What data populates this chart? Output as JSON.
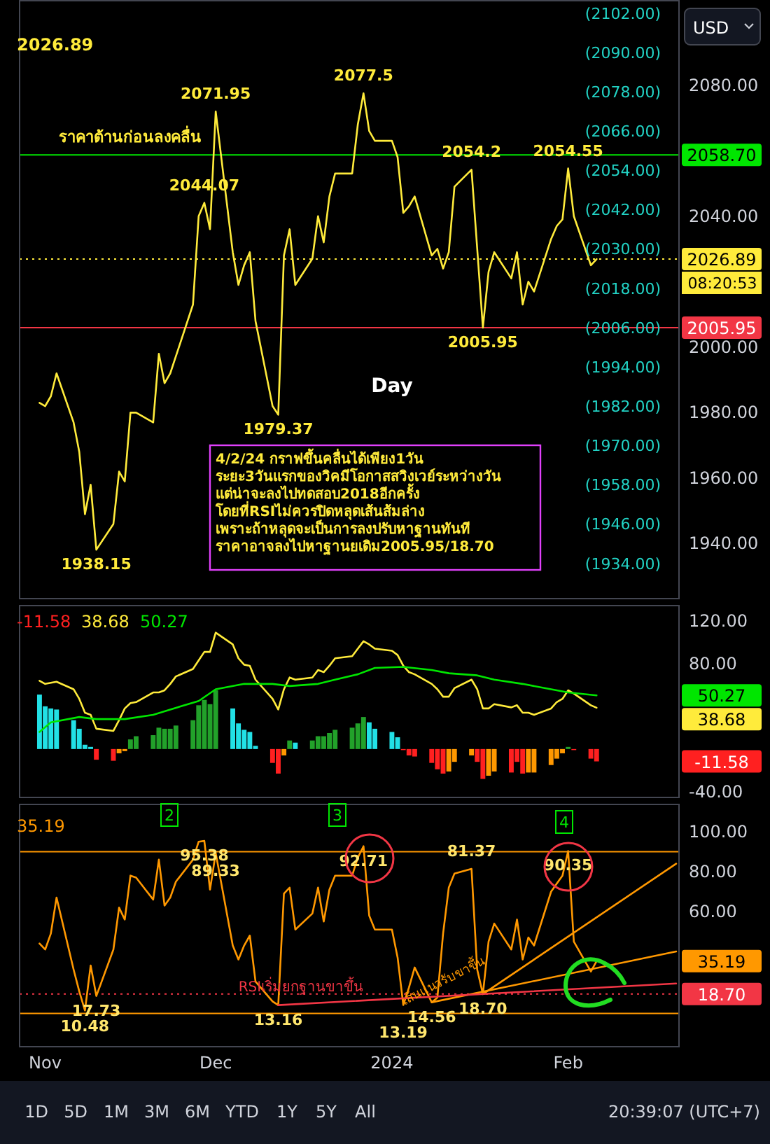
{
  "chart_data": [
    {
      "type": "line",
      "xlim": [
        "2023-10-27T12:00",
        "2024-02-20T12:00"
      ],
      "ylim": [
        1923,
        2106
      ],
      "y2lim": [
        1923,
        2106
      ],
      "tick_labels": "y",
      "grid": false,
      "yticks": [
        {
          "value": 1940,
          "label": "1940.00"
        },
        {
          "value": 1960,
          "label": "1960.00"
        },
        {
          "value": 1980,
          "label": "1980.00"
        },
        {
          "value": 2000,
          "label": "2000.00"
        },
        {
          "value": 2040,
          "label": "2040.00"
        },
        {
          "value": 2080,
          "label": "2080.00"
        }
      ],
      "y2ticks": [
        {
          "value": 2102,
          "label": "(2102.00)"
        },
        {
          "value": 2090,
          "label": "(2090.00)"
        },
        {
          "value": 2078,
          "label": "(2078.00)"
        },
        {
          "value": 2066,
          "label": "(2066.00)"
        },
        {
          "value": 2054,
          "label": "(2054.00)"
        },
        {
          "value": 2042,
          "label": "(2042.00)"
        },
        {
          "value": 2030,
          "label": "(2030.00)"
        },
        {
          "value": 2018,
          "label": "(2018.00)"
        },
        {
          "value": 2006,
          "label": "(2006.00)"
        },
        {
          "value": 1994,
          "label": "(1994.00)"
        },
        {
          "value": 1982,
          "label": "(1982.00)"
        },
        {
          "value": 1970,
          "label": "(1970.00)"
        },
        {
          "value": 1958,
          "label": "(1958.00)"
        },
        {
          "value": 1946,
          "label": "(1946.00)"
        },
        {
          "value": 1934,
          "label": "(1934.00)"
        }
      ],
      "series": [
        {
          "color": "#ffeb3b",
          "x": [
            "2023-10-31",
            "2023-11-01",
            "2023-11-02",
            "2023-11-03",
            "2023-11-06",
            "2023-11-07",
            "2023-11-08",
            "2023-11-09",
            "2023-11-10",
            "2023-11-13",
            "2023-11-14",
            "2023-11-15",
            "2023-11-16",
            "2023-11-17",
            "2023-11-20",
            "2023-11-21",
            "2023-11-22",
            "2023-11-23",
            "2023-11-27",
            "2023-11-28",
            "2023-11-29",
            "2023-11-30",
            "2023-12-01",
            "2023-12-04",
            "2023-12-05",
            "2023-12-06",
            "2023-12-07",
            "2023-12-08",
            "2023-12-11",
            "2023-12-12",
            "2023-12-13",
            "2023-12-14",
            "2023-12-15",
            "2023-12-18",
            "2023-12-19",
            "2023-12-20",
            "2023-12-21",
            "2023-12-22",
            "2023-12-25",
            "2023-12-26",
            "2023-12-27",
            "2023-12-28",
            "2023-12-29",
            "2024-01-01",
            "2024-01-02",
            "2024-01-03",
            "2024-01-04",
            "2024-01-05",
            "2024-01-08",
            "2024-01-09",
            "2024-01-10",
            "2024-01-11",
            "2024-01-12",
            "2024-01-15",
            "2024-01-17",
            "2024-01-18",
            "2024-01-19",
            "2024-01-22",
            "2024-01-23",
            "2024-01-24",
            "2024-01-25",
            "2024-01-26",
            "2024-01-29",
            "2024-01-30",
            "2024-01-31",
            "2024-02-01",
            "2024-02-02",
            "2024-02-05",
            "2024-02-06"
          ],
          "values": [
            1983,
            1982,
            1985,
            1992,
            1977,
            1968,
            1949,
            1958,
            1938.15,
            1946,
            1962,
            1959,
            1980,
            1980,
            1977,
            1998,
            1989,
            1992,
            2013,
            2040,
            2044.07,
            2036,
            2071.95,
            2029,
            2019,
            2025,
            2029,
            2008,
            1982,
            1979.37,
            2028,
            2036,
            2019,
            2027,
            2040,
            2032,
            2046,
            2053,
            2053,
            2068,
            2077.5,
            2066,
            2063,
            2063,
            2058,
            2041,
            2043,
            2046,
            2028,
            2030,
            2024,
            2029,
            2049,
            2054.2,
            2005.95,
            2023,
            2029,
            2021,
            2029,
            2013,
            2020,
            2017,
            2033,
            2037,
            2039,
            2054.55,
            2040,
            2025,
            2026.89
          ]
        }
      ],
      "ref_lines": [
        {
          "axis": "y",
          "value": 2058.7,
          "label": "2058.70",
          "color": "#00e600",
          "line_style": "solid"
        },
        {
          "axis": "y",
          "value": 2005.95,
          "label": "2005.95",
          "color": "#f23645",
          "line_style": "solid"
        },
        {
          "axis": "y",
          "value": 2026.89,
          "label": "2026.89",
          "color": "#ffeb3b",
          "line_style": "dotted"
        }
      ],
      "annotations": [
        "2026.89",
        "Day",
        "4/2/24 กราฟขึ้นคลื่นได้เพียง1วัน\nระยะ3วันแรกของวิคมีโอกาสสวิงเวย์ระหว่างวัน\nแต่น่าจะลงไปทดสอบ2018อีกครั้ง\nโดยที่RSIไม่ควรปิดหลุดเส้นส้มล่าง\nเพราะถ้าหลุดจะเป็นการลงปรับหาฐานทันที\nราคาอาจลงไปหาฐานยเดิม2005.95/18.70",
        "USD",
        "08:20:53",
        {
          "text": "ราคาต้านก่อนลงคลื่น",
          "x": "2023-11-16",
          "y": 2058.7
        },
        {
          "text": "2071.95",
          "x": "2023-12-01",
          "y": 2071.95
        },
        {
          "text": "2077.5",
          "x": "2023-12-27",
          "y": 2077.5
        },
        {
          "text": "2044.07",
          "x": "2023-11-29",
          "y": 2044.07
        },
        {
          "text": "1979.37",
          "x": "2023-12-12",
          "y": 1979.37
        },
        {
          "text": "1938.15",
          "x": "2023-11-10",
          "y": 1938.15
        },
        {
          "text": "2054.2",
          "x": "2024-01-15",
          "y": 2054.2
        },
        {
          "text": "2005.95",
          "x": "2024-01-17",
          "y": 2005.95
        },
        {
          "text": "2054.55",
          "x": "2024-02-01",
          "y": 2054.55
        }
      ]
    },
    {
      "type": "line",
      "xlim": [
        "2023-10-27T12:00",
        "2024-02-20T12:00"
      ],
      "ylim": [
        -46,
        135
      ],
      "tick_labels": "y",
      "grid": false,
      "x": [
        "2023-10-31",
        "2023-11-01",
        "2023-11-02",
        "2023-11-03",
        "2023-11-06",
        "2023-11-07",
        "2023-11-08",
        "2023-11-09",
        "2023-11-10",
        "2023-11-13",
        "2023-11-14",
        "2023-11-15",
        "2023-11-16",
        "2023-11-17",
        "2023-11-20",
        "2023-11-21",
        "2023-11-22",
        "2023-11-23",
        "2023-11-24",
        "2023-11-27",
        "2023-11-28",
        "2023-11-29",
        "2023-11-30",
        "2023-12-01",
        "2023-12-04",
        "2023-12-05",
        "2023-12-06",
        "2023-12-07",
        "2023-12-08",
        "2023-12-11",
        "2023-12-12",
        "2023-12-13",
        "2023-12-14",
        "2023-12-15",
        "2023-12-18",
        "2023-12-19",
        "2023-12-20",
        "2023-12-21",
        "2023-12-22",
        "2023-12-25",
        "2023-12-26",
        "2023-12-27",
        "2023-12-28",
        "2023-12-29",
        "2024-01-01",
        "2024-01-02",
        "2024-01-03",
        "2024-01-04",
        "2024-01-05",
        "2024-01-08",
        "2024-01-09",
        "2024-01-10",
        "2024-01-11",
        "2024-01-12",
        "2024-01-15",
        "2024-01-16",
        "2024-01-17",
        "2024-01-18",
        "2024-01-19",
        "2024-01-22",
        "2024-01-23",
        "2024-01-24",
        "2024-01-25",
        "2024-01-26",
        "2024-01-29",
        "2024-01-30",
        "2024-01-31",
        "2024-02-01",
        "2024-02-02",
        "2024-02-05",
        "2024-02-06"
      ],
      "yticks": [
        {
          "value": -40,
          "label": "-40.00"
        },
        {
          "value": 80,
          "label": "80.00"
        },
        {
          "value": 120,
          "label": "120.00"
        }
      ],
      "series": [
        {
          "type": "bar",
          "values": [
            51,
            40,
            38,
            37,
            27,
            19,
            4,
            2,
            -10,
            -11,
            -4,
            -2,
            9,
            12,
            13,
            20,
            19,
            19,
            22,
            27,
            41,
            46,
            42,
            55,
            38,
            24,
            18,
            16,
            3,
            -13,
            -23,
            -6,
            8,
            6,
            8,
            12,
            12,
            15,
            18,
            20,
            24,
            30,
            25,
            19,
            16,
            11,
            -1,
            -6,
            -7,
            -13,
            -19,
            -23,
            -21,
            -12,
            -6,
            -12,
            -28,
            -25,
            -21,
            -22,
            -12,
            -23,
            -22,
            -22,
            -15,
            -9,
            -4,
            2,
            -1,
            -9,
            -11.58
          ],
          "colors": [
            "#22e1e6",
            "#22e1e6",
            "#22e1e6",
            "#22e1e6",
            "#22e1e6",
            "#22e1e6",
            "#22e1e6",
            "#22e1e6",
            "#ff2020",
            "#ff2020",
            "#ff9800",
            "#ff9800",
            "#22a12a",
            "#22a12a",
            "#22a12a",
            "#22a12a",
            "#22a12a",
            "#22a12a",
            "#22a12a",
            "#22a12a",
            "#22a12a",
            "#22a12a",
            "#22a12a",
            "#22a12a",
            "#22e1e6",
            "#22e1e6",
            "#22e1e6",
            "#22e1e6",
            "#22e1e6",
            "#ff2020",
            "#ff2020",
            "#ff9800",
            "#22a12a",
            "#22e1e6",
            "#22a12a",
            "#22a12a",
            "#22a12a",
            "#22a12a",
            "#22a12a",
            "#22a12a",
            "#22a12a",
            "#22a12a",
            "#22e1e6",
            "#22e1e6",
            "#22e1e6",
            "#22e1e6",
            "#ff2020",
            "#ff2020",
            "#ff2020",
            "#ff2020",
            "#ff2020",
            "#ff2020",
            "#ff9800",
            "#ff9800",
            "#ff9800",
            "#ff2020",
            "#ff2020",
            "#ff9800",
            "#ff9800",
            "#ff2020",
            "#ff2020",
            "#ff2020",
            "#ff9800",
            "#ff9800",
            "#ff9800",
            "#ff9800",
            "#ff9800",
            "#22a12a",
            "#ff2020",
            "#ff2020",
            "#ff2020"
          ]
        },
        {
          "color": "#ffeb3b",
          "x": [
            "2023-10-31",
            "2023-11-01",
            "2023-11-03",
            "2023-11-06",
            "2023-11-07",
            "2023-11-08",
            "2023-11-09",
            "2023-11-10",
            "2023-11-13",
            "2023-11-14",
            "2023-11-15",
            "2023-11-16",
            "2023-11-17",
            "2023-11-20",
            "2023-11-21",
            "2023-11-22",
            "2023-11-23",
            "2023-11-24",
            "2023-11-27",
            "2023-11-28",
            "2023-11-29",
            "2023-11-30",
            "2023-12-01",
            "2023-12-04",
            "2023-12-05",
            "2023-12-06",
            "2023-12-07",
            "2023-12-08",
            "2023-12-11",
            "2023-12-12",
            "2023-12-13",
            "2023-12-14",
            "2023-12-15",
            "2023-12-18",
            "2023-12-19",
            "2023-12-20",
            "2023-12-21",
            "2023-12-22",
            "2023-12-25",
            "2023-12-26",
            "2023-12-27",
            "2023-12-28",
            "2023-12-29",
            "2024-01-01",
            "2024-01-02",
            "2024-01-03",
            "2024-01-04",
            "2024-01-05",
            "2024-01-08",
            "2024-01-09",
            "2024-01-10",
            "2024-01-11",
            "2024-01-12",
            "2024-01-15",
            "2024-01-16",
            "2024-01-17",
            "2024-01-18",
            "2024-01-19",
            "2024-01-22",
            "2024-01-23",
            "2024-01-24",
            "2024-01-25",
            "2024-01-26",
            "2024-01-29",
            "2024-01-30",
            "2024-01-31",
            "2024-02-01",
            "2024-02-02",
            "2024-02-05",
            "2024-02-06"
          ],
          "values": [
            64,
            61,
            63,
            56,
            47,
            34,
            32,
            19,
            17,
            27,
            38,
            43,
            44,
            53,
            53,
            55,
            61,
            68,
            75,
            83,
            91,
            91,
            109,
            98,
            85,
            79,
            78,
            65,
            47,
            37,
            56,
            67,
            65,
            67,
            74,
            72,
            78,
            85,
            87,
            94,
            101,
            98,
            94,
            92,
            88,
            78,
            72,
            70,
            61,
            56,
            49,
            49,
            57,
            65,
            56,
            38,
            38,
            42,
            39,
            41,
            34,
            34,
            32,
            38,
            44,
            47,
            55,
            52,
            41,
            38.68
          ]
        },
        {
          "color": "#00e600",
          "x": [
            "2023-10-31",
            "2023-11-02",
            "2023-11-07",
            "2023-11-10",
            "2023-11-15",
            "2023-11-20",
            "2023-11-23",
            "2023-11-28",
            "2023-12-01",
            "2023-12-06",
            "2023-12-11",
            "2023-12-14",
            "2023-12-19",
            "2023-12-22",
            "2023-12-26",
            "2023-12-29",
            "2024-01-03",
            "2024-01-08",
            "2024-01-11",
            "2024-01-16",
            "2024-01-19",
            "2024-01-24",
            "2024-01-29",
            "2024-02-01",
            "2024-02-06"
          ],
          "values": [
            16,
            25,
            30,
            28,
            28,
            32,
            37,
            45,
            56,
            61,
            61,
            59,
            61,
            65,
            70,
            76,
            77,
            74,
            71,
            69,
            65,
            61,
            56,
            53,
            50.27
          ]
        }
      ],
      "annotations": [
        "-11.58",
        "38.68",
        "50.27",
        "-11.58",
        "38.68",
        "50.27"
      ]
    },
    {
      "type": "line",
      "xlim": [
        "2023-10-27T12:00",
        "2024-02-20T12:00"
      ],
      "ylim": [
        -8,
        114
      ],
      "grid": false,
      "x": [
        "2023-10-31",
        "2023-11-01",
        "2023-11-02",
        "2023-11-03",
        "2023-11-06",
        "2023-11-07",
        "2023-11-08",
        "2023-11-09",
        "2023-11-10",
        "2023-11-13",
        "2023-11-14",
        "2023-11-15",
        "2023-11-16",
        "2023-11-17",
        "2023-11-20",
        "2023-11-21",
        "2023-11-22",
        "2023-11-23",
        "2023-11-24",
        "2023-11-27",
        "2023-11-28",
        "2023-11-29",
        "2023-11-30",
        "2023-12-01",
        "2023-12-04",
        "2023-12-05",
        "2023-12-06",
        "2023-12-07",
        "2023-12-08",
        "2023-12-11",
        "2023-12-12",
        "2023-12-13",
        "2023-12-14",
        "2023-12-15",
        "2023-12-18",
        "2023-12-19",
        "2023-12-20",
        "2023-12-21",
        "2023-12-22",
        "2023-12-25",
        "2023-12-26",
        "2023-12-27",
        "2023-12-28",
        "2023-12-29",
        "2024-01-01",
        "2024-01-02",
        "2024-01-03",
        "2024-01-04",
        "2024-01-05",
        "2024-01-08",
        "2024-01-09",
        "2024-01-10",
        "2024-01-11",
        "2024-01-12",
        "2024-01-15",
        "2024-01-16",
        "2024-01-17",
        "2024-01-18",
        "2024-01-19",
        "2024-01-22",
        "2024-01-23",
        "2024-01-24",
        "2024-01-25",
        "2024-01-26",
        "2024-01-29",
        "2024-01-30",
        "2024-01-31",
        "2024-02-01",
        "2024-02-02",
        "2024-02-05",
        "2024-02-06"
      ],
      "xticks": [
        {
          "value": "2023-11-01",
          "label": "Nov"
        },
        {
          "value": "2023-12-01",
          "label": "Dec"
        },
        {
          "value": "2024-01-01",
          "label": "2024"
        },
        {
          "value": "2024-02-01",
          "label": "Feb"
        }
      ],
      "yticks": [
        {
          "value": 60,
          "label": "60.00"
        },
        {
          "value": 80,
          "label": "80.00"
        },
        {
          "value": 100,
          "label": "100.00"
        }
      ],
      "series": [
        {
          "color": "#ff9800",
          "values": [
            44,
            41,
            49,
            67,
            31,
            20,
            10.48,
            33,
            17.73,
            41,
            62,
            56,
            78,
            77,
            66,
            86,
            63,
            67,
            75,
            86,
            95,
            95.38,
            71,
            89.33,
            43,
            36,
            43,
            48,
            25,
            15,
            13.16,
            69,
            72,
            51,
            59,
            72,
            55,
            71,
            78,
            78,
            87,
            92.71,
            58,
            51,
            51,
            37,
            13.19,
            22,
            32,
            14.56,
            17,
            49,
            72,
            79,
            81.37,
            31,
            18.7,
            45,
            54,
            41,
            56,
            36,
            47,
            43,
            70,
            74,
            78,
            90.35,
            45,
            30,
            35.19
          ]
        },
        {
          "color": "#ff9800",
          "x": [
            "2024-01-17",
            "2024-02-20"
          ],
          "values": [
            18.7,
            84
          ]
        },
        {
          "color": "#ff9800",
          "x": [
            "2024-01-08",
            "2024-02-20"
          ],
          "values": [
            14.56,
            40
          ]
        },
        {
          "color": "#f23645",
          "x": [
            "2023-12-12",
            "2024-02-20"
          ],
          "values": [
            13.16,
            24
          ]
        }
      ],
      "ref_lines": [
        {
          "axis": "y",
          "value": 90,
          "label": null,
          "color": "#ff9800",
          "line_style": "solid"
        },
        {
          "axis": "y",
          "value": 9,
          "label": null,
          "color": "#ff9800",
          "line_style": "solid"
        },
        {
          "axis": "y",
          "value": 18.7,
          "label": "18.70",
          "color": "#f23645",
          "line_style": "dotted"
        }
      ],
      "annotations": [
        "35.19",
        "2",
        "3",
        "4",
        "เส้นแนวรับขาขึ้น",
        "1D",
        "5D",
        "1M",
        "3M",
        "6M",
        "YTD",
        "1Y",
        "5Y",
        "All",
        "20:39:07 (UTC+7)",
        "35.19",
        {
          "text": "95.38",
          "x": "2023-11-29",
          "y": 95.38
        },
        {
          "text": "89.33",
          "x": "2023-12-01",
          "y": 89.33
        },
        {
          "text": "92.71",
          "x": "2023-12-27",
          "y": 92.71
        },
        {
          "text": "90.35",
          "x": "2024-02-01",
          "y": 90.35
        },
        {
          "text": "81.37",
          "x": "2024-01-15",
          "y": 81.37
        },
        {
          "text": "17.73",
          "x": "2023-11-10",
          "y": 17.73
        },
        {
          "text": "10.48",
          "x": "2023-11-08",
          "y": 10.48
        },
        {
          "text": "13.16",
          "x": "2023-12-12",
          "y": 13.16
        },
        {
          "text": "14.56",
          "x": "2024-01-08",
          "y": 14.56
        },
        {
          "text": "13.19",
          "x": "2024-01-03",
          "y": 13.19
        },
        {
          "text": "18.70",
          "x": "2024-01-17",
          "y": 18.7
        },
        {
          "text": "RSIเริ่มยกฐานขาขึ้น",
          "x": "2023-12-16",
          "y": 13.8
        }
      ]
    }
  ]
}
